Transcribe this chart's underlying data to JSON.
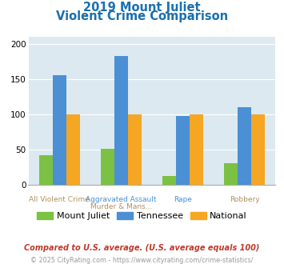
{
  "title_line1": "2019 Mount Juliet",
  "title_line2": "Violent Crime Comparison",
  "top_labels": [
    "",
    "Aggravated Assault",
    "Rape",
    ""
  ],
  "bot_labels": [
    "All Violent Crime",
    "Murder & Mans...",
    "",
    "Robbery"
  ],
  "series": {
    "Mount Juliet": [
      42,
      51,
      13,
      31
    ],
    "Tennessee": [
      156,
      183,
      98,
      110
    ],
    "National": [
      100,
      100,
      100,
      100
    ]
  },
  "colors": {
    "Mount Juliet": "#7bc143",
    "Tennessee": "#4b8fd4",
    "National": "#f5a623"
  },
  "ylim": [
    0,
    210
  ],
  "yticks": [
    0,
    50,
    100,
    150,
    200
  ],
  "footnote1": "Compared to U.S. average. (U.S. average equals 100)",
  "footnote2": "© 2025 CityRating.com - https://www.cityrating.com/crime-statistics/",
  "title_color": "#1a6faf",
  "top_label_color": "#4b8fd4",
  "bot_label_color": "#b09060",
  "footnote1_color": "#c0392b",
  "footnote2_color": "#999999",
  "plot_bg_color": "#dce9f0",
  "bar_width": 0.22
}
